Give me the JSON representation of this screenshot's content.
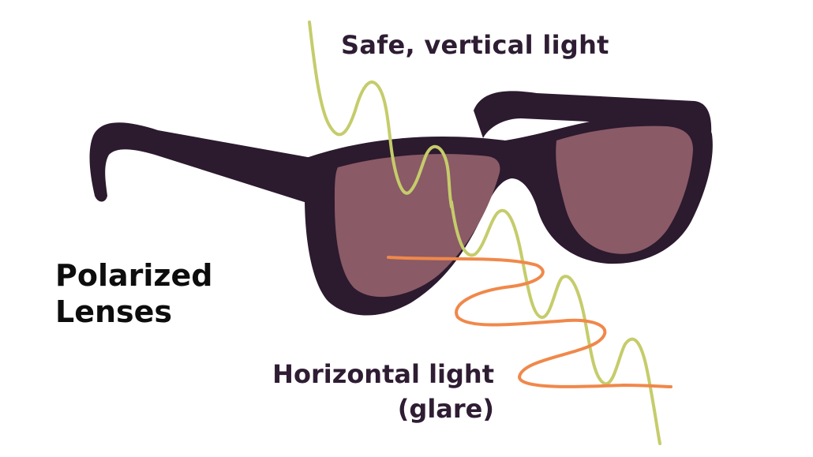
{
  "labels": {
    "vertical_light": "Safe, vertical light",
    "title_line1": "Polarized",
    "title_line2": "Lenses",
    "horizontal_line1": "Horizontal light",
    "horizontal_line2": "(glare)"
  },
  "colors": {
    "frame": "#2c1a2e",
    "lens": "#8a5a66",
    "vertical_wave": "#c5cc6b",
    "horizontal_wave": "#f0884a",
    "text": "#2e1d33"
  }
}
